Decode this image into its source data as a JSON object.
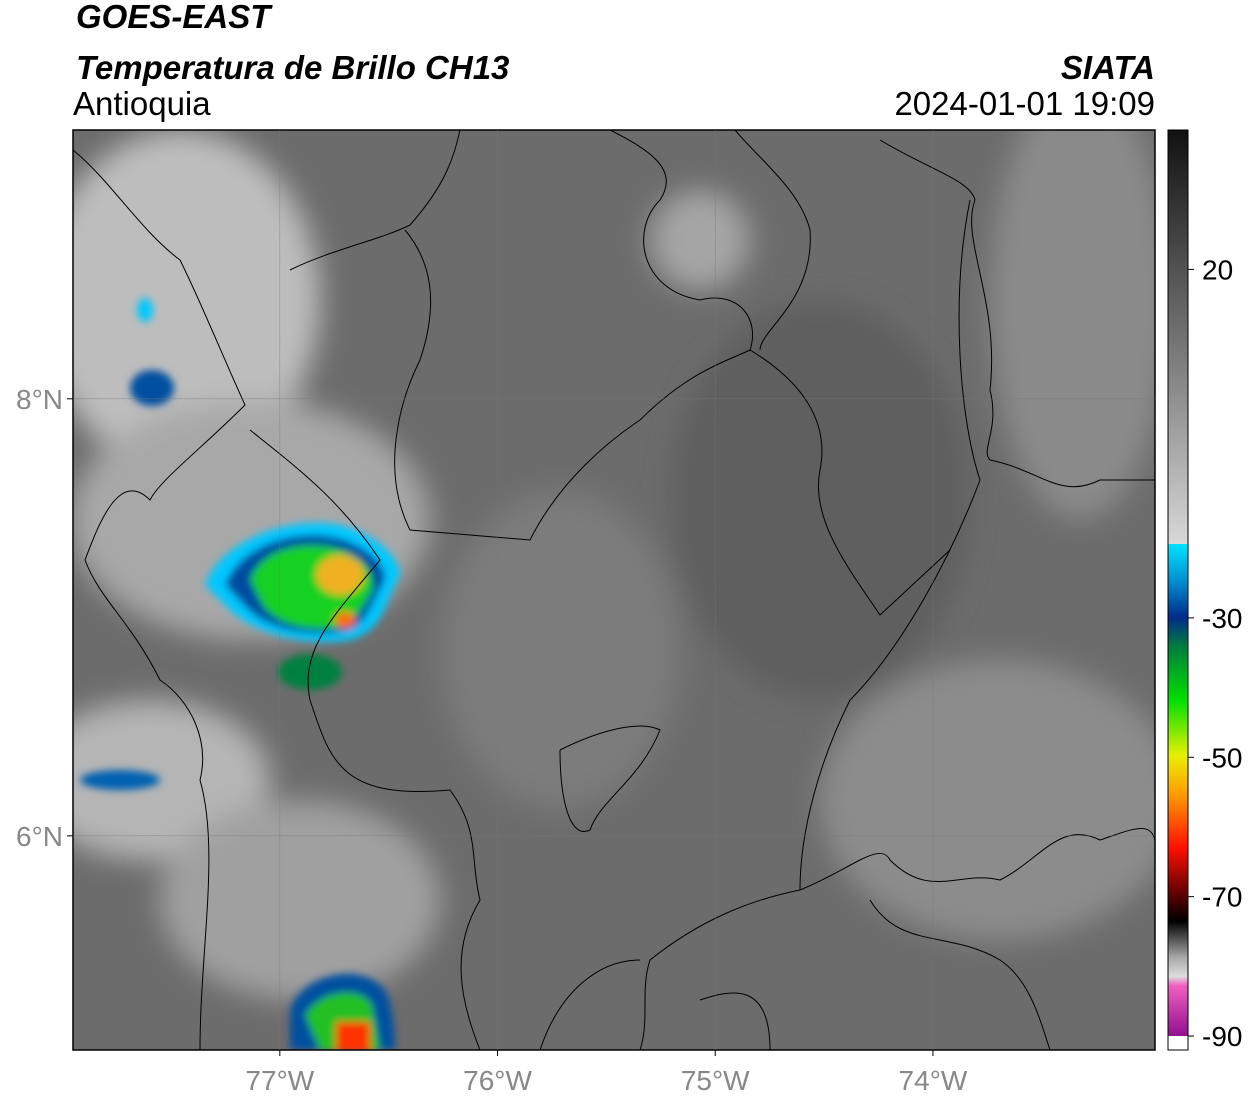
{
  "header": {
    "satellite": "GOES-EAST",
    "product": "Temperatura de Brillo CH13",
    "region": "Antioquia",
    "agency": "SIATA",
    "datetime": "2024-01-01 19:09"
  },
  "map": {
    "xlim": [
      -77.95,
      -72.98
    ],
    "ylim": [
      5.02,
      9.23
    ],
    "xticks": [
      {
        "value": -77,
        "label": "77°W"
      },
      {
        "value": -76,
        "label": "76°W"
      },
      {
        "value": -75,
        "label": "75°W"
      },
      {
        "value": -74,
        "label": "74°W"
      }
    ],
    "yticks": [
      {
        "value": 8,
        "label": "8°N"
      },
      {
        "value": 6,
        "label": "6°N"
      }
    ]
  },
  "colorbar": {
    "lim": [
      -92,
      40
    ],
    "ticks": [
      20,
      -30,
      -50,
      -70,
      -90
    ]
  }
}
